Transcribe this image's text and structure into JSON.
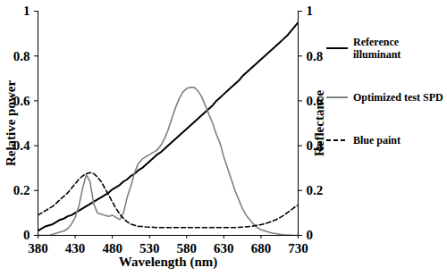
{
  "chart_data": {
    "type": "line",
    "x_label": "Wavelength (nm)",
    "y_label": "Relative power",
    "y2_label": "Reflectance",
    "x": [
      380,
      385,
      390,
      395,
      400,
      405,
      410,
      415,
      420,
      425,
      430,
      435,
      440,
      445,
      450,
      455,
      460,
      465,
      470,
      475,
      480,
      485,
      490,
      495,
      500,
      505,
      510,
      515,
      520,
      525,
      530,
      535,
      540,
      545,
      550,
      555,
      560,
      565,
      570,
      575,
      580,
      585,
      590,
      595,
      600,
      605,
      610,
      615,
      620,
      625,
      630,
      635,
      640,
      645,
      650,
      655,
      660,
      665,
      670,
      675,
      680,
      685,
      690,
      695,
      700,
      705,
      710,
      715,
      720,
      725,
      730
    ],
    "xlim": [
      380,
      730
    ],
    "xticks": [
      380,
      430,
      480,
      530,
      580,
      630,
      680,
      730
    ],
    "ylim": [
      0,
      1
    ],
    "yticks": [
      0,
      0.2,
      0.4,
      0.6,
      0.8,
      1
    ],
    "y2lim": [
      0,
      1
    ],
    "y2ticks": [
      0,
      0.2,
      0.4,
      0.6,
      0.8,
      1
    ],
    "grid": false,
    "legend": "right",
    "series": [
      {
        "name": "Reference illuminant",
        "color": "#000000",
        "line_style": "solid",
        "values": [
          0.02,
          0.03,
          0.04,
          0.045,
          0.05,
          0.06,
          0.07,
          0.075,
          0.085,
          0.09,
          0.1,
          0.11,
          0.12,
          0.13,
          0.14,
          0.15,
          0.16,
          0.17,
          0.18,
          0.19,
          0.205,
          0.215,
          0.225,
          0.24,
          0.25,
          0.265,
          0.275,
          0.29,
          0.3,
          0.315,
          0.33,
          0.345,
          0.36,
          0.37,
          0.385,
          0.4,
          0.415,
          0.43,
          0.445,
          0.46,
          0.475,
          0.49,
          0.505,
          0.52,
          0.535,
          0.55,
          0.565,
          0.58,
          0.6,
          0.615,
          0.63,
          0.645,
          0.66,
          0.675,
          0.69,
          0.71,
          0.725,
          0.74,
          0.755,
          0.77,
          0.785,
          0.8,
          0.815,
          0.83,
          0.845,
          0.86,
          0.875,
          0.89,
          0.91,
          0.93,
          0.95
        ]
      },
      {
        "name": "Optimized test SPD",
        "color": "#808080",
        "line_style": "solid",
        "values": [
          0,
          0,
          0,
          0,
          0.005,
          0.01,
          0.015,
          0.02,
          0.03,
          0.05,
          0.08,
          0.13,
          0.21,
          0.27,
          0.24,
          0.14,
          0.1,
          0.095,
          0.09,
          0.085,
          0.09,
          0.08,
          0.07,
          0.1,
          0.17,
          0.22,
          0.28,
          0.32,
          0.34,
          0.35,
          0.36,
          0.37,
          0.38,
          0.4,
          0.43,
          0.47,
          0.52,
          0.57,
          0.61,
          0.64,
          0.655,
          0.66,
          0.66,
          0.645,
          0.62,
          0.58,
          0.54,
          0.5,
          0.45,
          0.41,
          0.35,
          0.3,
          0.25,
          0.2,
          0.16,
          0.12,
          0.09,
          0.07,
          0.05,
          0.035,
          0.025,
          0.02,
          0.015,
          0.01,
          0.008,
          0.005,
          0.003,
          0.002,
          0.001,
          0,
          0
        ]
      },
      {
        "name": "Blue paint",
        "color": "#000000",
        "line_style": "dashed",
        "axis": "y2",
        "values": [
          0.09,
          0.1,
          0.11,
          0.12,
          0.13,
          0.145,
          0.16,
          0.175,
          0.19,
          0.21,
          0.23,
          0.25,
          0.265,
          0.275,
          0.28,
          0.275,
          0.26,
          0.24,
          0.21,
          0.18,
          0.15,
          0.12,
          0.095,
          0.075,
          0.06,
          0.05,
          0.045,
          0.04,
          0.04,
          0.038,
          0.037,
          0.036,
          0.035,
          0.035,
          0.035,
          0.035,
          0.035,
          0.035,
          0.035,
          0.035,
          0.035,
          0.035,
          0.035,
          0.035,
          0.035,
          0.035,
          0.035,
          0.035,
          0.035,
          0.035,
          0.035,
          0.035,
          0.035,
          0.035,
          0.036,
          0.037,
          0.038,
          0.04,
          0.042,
          0.045,
          0.048,
          0.052,
          0.057,
          0.063,
          0.07,
          0.078,
          0.088,
          0.1,
          0.112,
          0.125,
          0.135
        ]
      }
    ]
  }
}
